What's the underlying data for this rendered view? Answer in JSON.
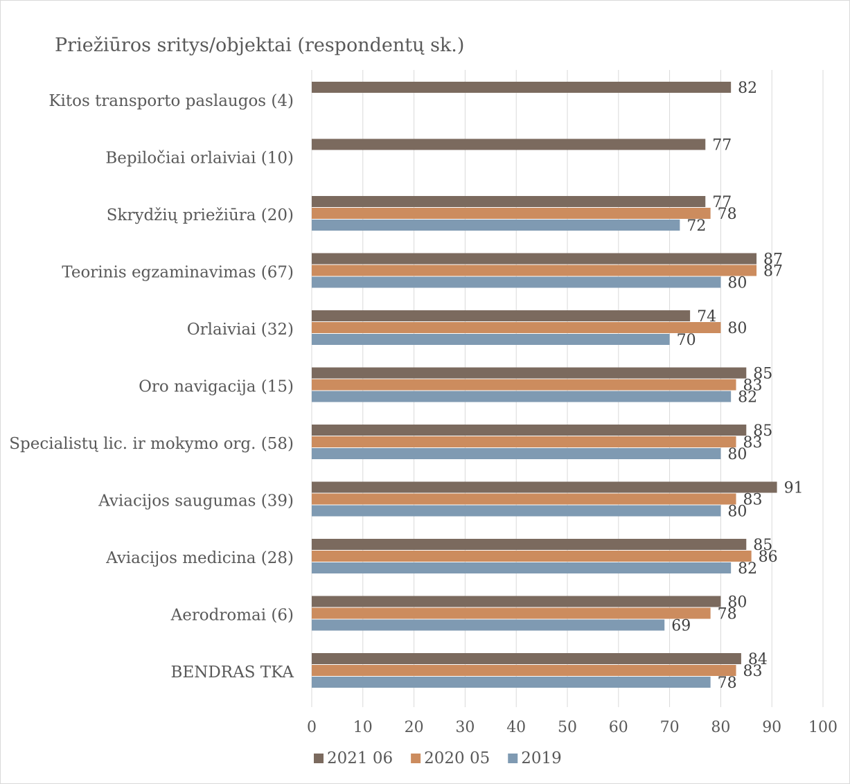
{
  "chart_data": {
    "type": "bar",
    "orientation": "horizontal",
    "title": "Priežiūros sritys/objektai (respondentų sk.)",
    "xlabel": "",
    "ylabel": "",
    "xlim": [
      0,
      100
    ],
    "xticks": [
      0,
      10,
      20,
      30,
      40,
      50,
      60,
      70,
      80,
      90,
      100
    ],
    "grid": true,
    "legend_position": "bottom",
    "categories": [
      "Kitos transporto paslaugos (4)",
      "Bepiločiai orlaiviai (10)",
      "Skrydžių priežiūra (20)",
      "Teorinis egzaminavimas (67)",
      "Orlaiviai (32)",
      "Oro navigacija (15)",
      "Specialistų lic. ir mokymo org. (58)",
      "Aviacijos saugumas (39)",
      "Aviacijos medicina (28)",
      "Aerodromai (6)",
      "BENDRAS TKA"
    ],
    "series": [
      {
        "name": "2021 06",
        "color": "#7b6a5e",
        "values": [
          82,
          77,
          77,
          87,
          74,
          85,
          85,
          91,
          85,
          80,
          84
        ]
      },
      {
        "name": "2020 05",
        "color": "#cc8c5e",
        "values": [
          null,
          null,
          78,
          87,
          80,
          83,
          83,
          83,
          86,
          78,
          83
        ]
      },
      {
        "name": "2019",
        "color": "#7f9ab2",
        "values": [
          null,
          null,
          72,
          80,
          70,
          82,
          80,
          80,
          82,
          69,
          78
        ]
      }
    ]
  }
}
